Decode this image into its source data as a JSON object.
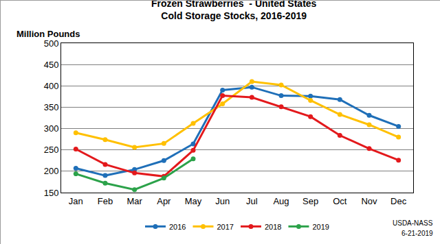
{
  "chart_data": {
    "type": "line",
    "title": "Frozen Strawberries  - United States",
    "subtitle": "Cold Storage Stocks, 2016-2019",
    "y_label": "Million Pounds",
    "annotations": [
      "USDA-NASS",
      "6-21-2019"
    ],
    "categories": [
      "Jan",
      "Feb",
      "Mar",
      "Apr",
      "May",
      "Jun",
      "Jul",
      "Aug",
      "Sep",
      "Oct",
      "Nov",
      "Dec"
    ],
    "series": [
      {
        "name": "2016",
        "color": "#1f6fb8",
        "values": [
          207,
          190,
          204,
          225,
          264,
          390,
          397,
          377,
          376,
          368,
          331,
          305
        ]
      },
      {
        "name": "2017",
        "color": "#ffc000",
        "values": [
          290,
          274,
          256,
          265,
          312,
          358,
          410,
          402,
          366,
          333,
          309,
          280
        ]
      },
      {
        "name": "2018",
        "color": "#e3191c",
        "values": [
          252,
          216,
          196,
          188,
          249,
          377,
          373,
          351,
          328,
          284,
          253,
          226
        ]
      },
      {
        "name": "2019",
        "color": "#2ca24a",
        "values": [
          194,
          172,
          157,
          184,
          229,
          null,
          null,
          null,
          null,
          null,
          null,
          null
        ]
      }
    ],
    "ylim": [
      150,
      500
    ],
    "yticks": [
      150,
      200,
      250,
      300,
      350,
      400,
      450,
      500
    ],
    "grid": true,
    "legend": "bottom",
    "marker": "circle",
    "line_style": "solid"
  }
}
